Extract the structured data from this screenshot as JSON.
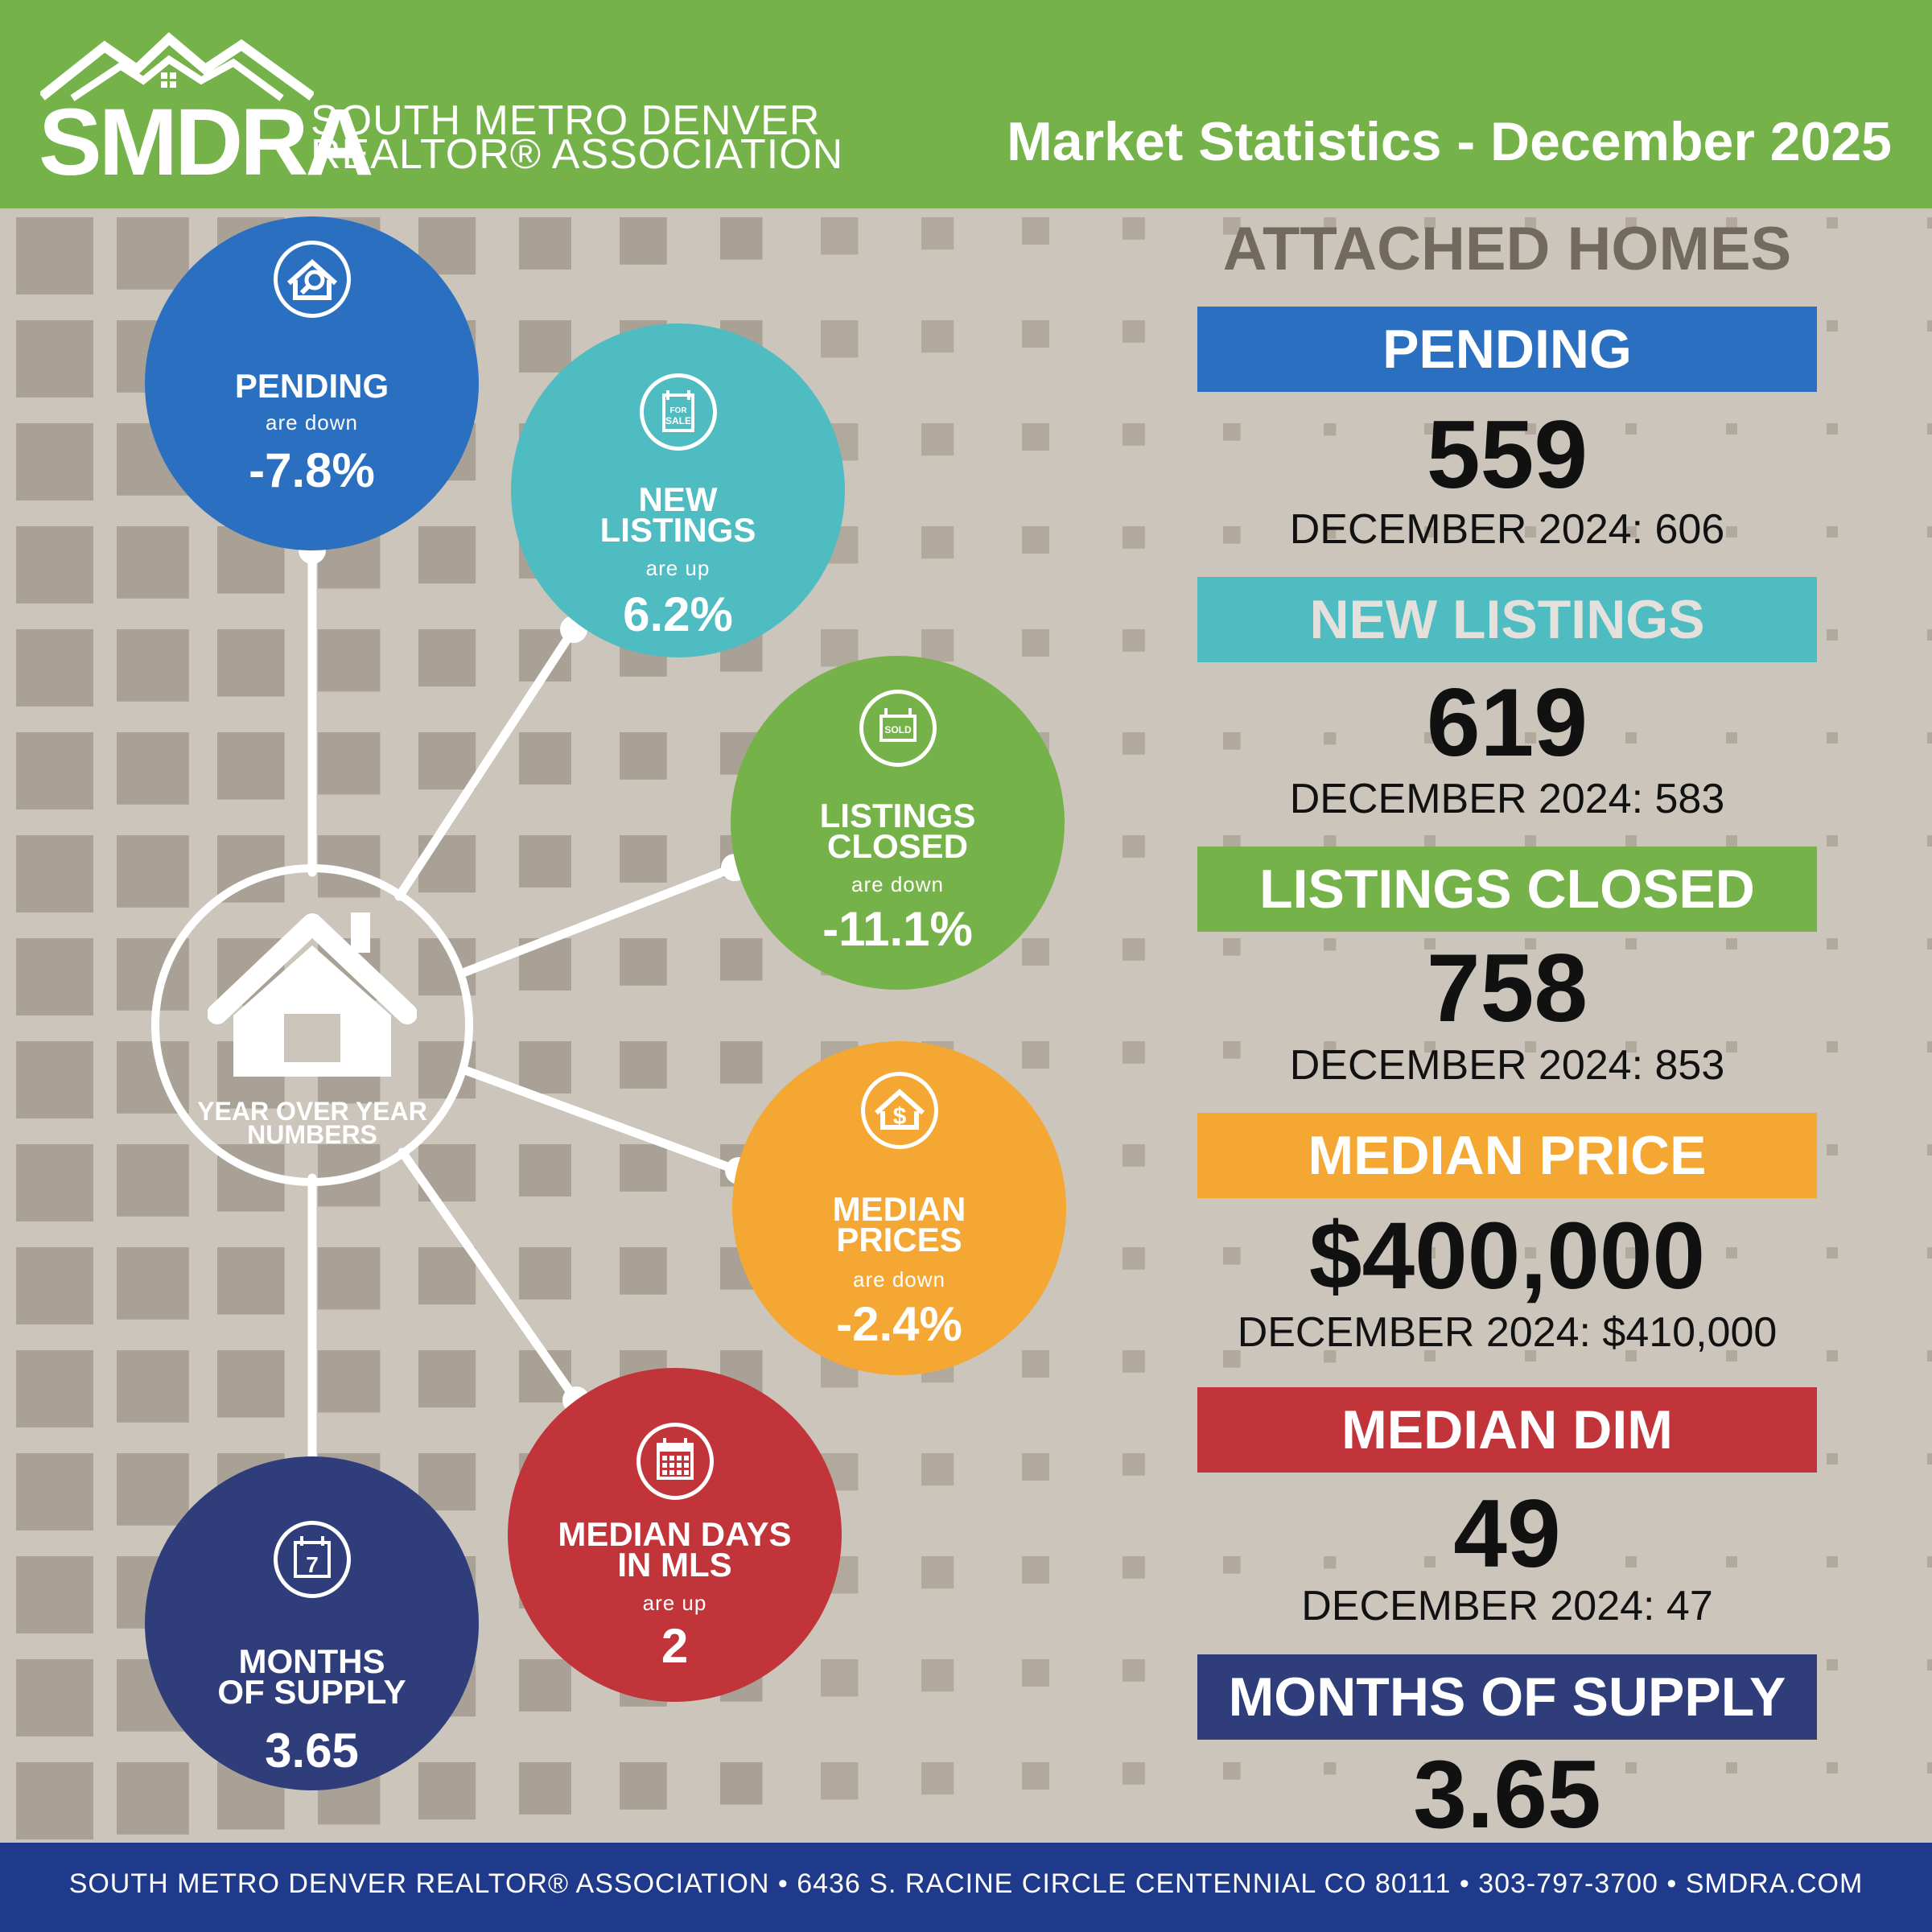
{
  "header": {
    "logo_abbr": "SMDRA",
    "logo_line1": "SOUTH METRO DENVER",
    "logo_line2": "REALTOR® ASSOCIATION",
    "title": "Market Statistics - December 2025",
    "bg_color": "#76b24a"
  },
  "hub": {
    "label_line1": "YEAR OVER YEAR",
    "label_line2": "NUMBERS",
    "icon": "house-icon"
  },
  "circles": {
    "pending": {
      "label": "PENDING",
      "direction": "are down",
      "value": "-7.8%",
      "color": "#2b6fc0",
      "icon": "house-search-icon"
    },
    "new_listings": {
      "label_line1": "NEW",
      "label_line2": "LISTINGS",
      "direction": "are up",
      "value": "6.2%",
      "color": "#4ebcc1",
      "icon": "for-sale-sign-icon",
      "icon_text_1": "FOR",
      "icon_text_2": "SALE"
    },
    "listings_closed": {
      "label_line1": "LISTINGS",
      "label_line2": "CLOSED",
      "direction": "are down",
      "value": "-11.1%",
      "color": "#76b24a",
      "icon": "sold-sign-icon",
      "icon_text": "SOLD"
    },
    "median_prices": {
      "label_line1": "MEDIAN",
      "label_line2": "PRICES",
      "direction": "are down",
      "value": "-2.4%",
      "color": "#f5a733",
      "icon": "house-dollar-icon"
    },
    "median_days": {
      "label_line1": "MEDIAN DAYS",
      "label_line2": "IN MLS",
      "direction": "are up",
      "value": "2",
      "color": "#c1353a",
      "icon": "calendar-icon"
    },
    "months_supply": {
      "label_line1": "MONTHS",
      "label_line2": "OF SUPPLY",
      "value": "3.65",
      "color": "#2f3e7b",
      "icon": "calendar-7-icon",
      "icon_text": "7"
    }
  },
  "panel": {
    "title": "ATTACHED HOMES",
    "title_color": "#736a5e",
    "stats": [
      {
        "label": "PENDING",
        "value": "559",
        "previous": "DECEMBER 2024: 606",
        "color": "#2b6fc0"
      },
      {
        "label": "NEW LISTINGS",
        "value": "619",
        "previous": "DECEMBER 2024: 583",
        "color": "#4ebcc1"
      },
      {
        "label": "LISTINGS CLOSED",
        "value": "758",
        "previous": "DECEMBER 2024: 853",
        "color": "#76b24a"
      },
      {
        "label": "MEDIAN PRICE",
        "value": "$400,000",
        "previous": "DECEMBER 2024: $410,000",
        "color": "#f5a733"
      },
      {
        "label": "MEDIAN DIM",
        "value": "49",
        "previous": "DECEMBER 2024: 47",
        "color": "#c1353a"
      },
      {
        "label": "MONTHS OF SUPPLY",
        "value": "3.65",
        "color": "#2f3e7b"
      }
    ]
  },
  "footer": {
    "text": "SOUTH METRO DENVER REALTOR® ASSOCIATION • 6436 S. RACINE CIRCLE CENTENNIAL CO 80111 • 303-797-3700 • SMDRA.COM",
    "bg_color": "#1f3a8a"
  }
}
